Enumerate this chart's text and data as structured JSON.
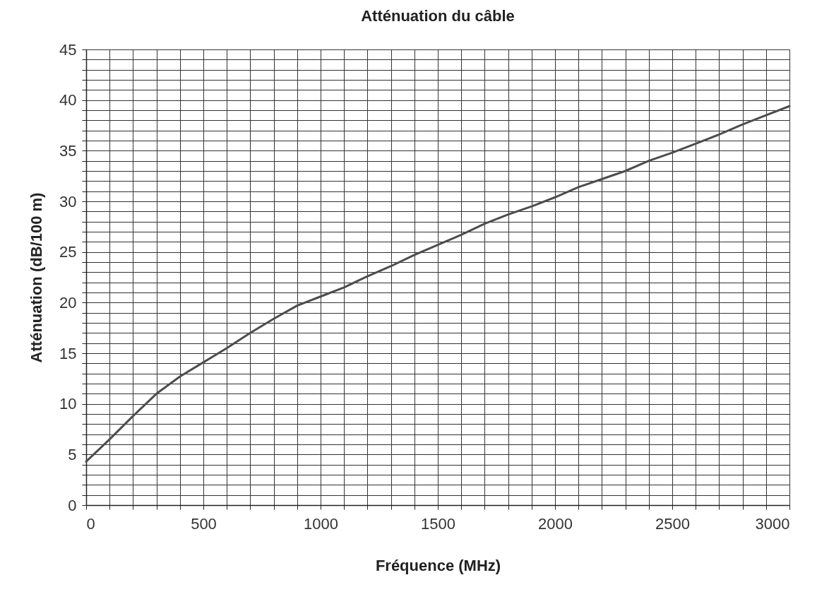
{
  "chart_data": {
    "type": "line",
    "title": "Atténuation du câble",
    "xlabel": "Fréquence (MHz)",
    "ylabel": "Atténuation (dB/100 m)",
    "x": [
      0,
      100,
      200,
      300,
      400,
      500,
      600,
      700,
      800,
      900,
      1000,
      1100,
      1200,
      1300,
      1400,
      1500,
      1600,
      1700,
      1800,
      1900,
      2000,
      2100,
      2200,
      2300,
      2400,
      2500,
      2600,
      2700,
      2800,
      2900,
      3000
    ],
    "series": [
      {
        "color": "#4d4d4d",
        "values": [
          4.3,
          6.5,
          8.8,
          11.0,
          12.7,
          14.1,
          15.5,
          17.0,
          18.4,
          19.7,
          20.6,
          21.5,
          22.6,
          23.6,
          24.7,
          25.7,
          26.7,
          27.8,
          28.7,
          29.5,
          30.4,
          31.4,
          32.2,
          33.0,
          34.0,
          34.8,
          35.7,
          36.6,
          37.6,
          38.5,
          39.4
        ]
      }
    ],
    "xlim": [
      0,
      3000
    ],
    "ylim": [
      0,
      45
    ],
    "xticks": [
      0,
      {
        "value": 100,
        "label": null
      },
      {
        "value": 200,
        "label": null
      },
      {
        "value": 300,
        "label": null
      },
      {
        "value": 400,
        "label": null
      },
      500,
      {
        "value": 600,
        "label": null
      },
      {
        "value": 700,
        "label": null
      },
      {
        "value": 800,
        "label": null
      },
      {
        "value": 900,
        "label": null
      },
      1000,
      {
        "value": 1100,
        "label": null
      },
      {
        "value": 1200,
        "label": null
      },
      {
        "value": 1300,
        "label": null
      },
      {
        "value": 1400,
        "label": null
      },
      1500,
      {
        "value": 1600,
        "label": null
      },
      {
        "value": 1700,
        "label": null
      },
      {
        "value": 1800,
        "label": null
      },
      {
        "value": 1900,
        "label": null
      },
      2000,
      {
        "value": 2100,
        "label": null
      },
      {
        "value": 2200,
        "label": null
      },
      {
        "value": 2300,
        "label": null
      },
      {
        "value": 2400,
        "label": null
      },
      2500,
      {
        "value": 2600,
        "label": null
      },
      {
        "value": 2700,
        "label": null
      },
      {
        "value": 2800,
        "label": null
      },
      {
        "value": 2900,
        "label": null
      },
      3000
    ],
    "yticks": [
      0,
      {
        "value": 1,
        "label": null
      },
      {
        "value": 2,
        "label": null
      },
      {
        "value": 3,
        "label": null
      },
      {
        "value": 4,
        "label": null
      },
      5,
      {
        "value": 6,
        "label": null
      },
      {
        "value": 7,
        "label": null
      },
      {
        "value": 8,
        "label": null
      },
      {
        "value": 9,
        "label": null
      },
      10,
      {
        "value": 11,
        "label": null
      },
      {
        "value": 12,
        "label": null
      },
      {
        "value": 13,
        "label": null
      },
      {
        "value": 14,
        "label": null
      },
      15,
      {
        "value": 16,
        "label": null
      },
      {
        "value": 17,
        "label": null
      },
      {
        "value": 18,
        "label": null
      },
      {
        "value": 19,
        "label": null
      },
      20,
      {
        "value": 21,
        "label": null
      },
      {
        "value": 22,
        "label": null
      },
      {
        "value": 23,
        "label": null
      },
      {
        "value": 24,
        "label": null
      },
      25,
      {
        "value": 26,
        "label": null
      },
      {
        "value": 27,
        "label": null
      },
      {
        "value": 28,
        "label": null
      },
      {
        "value": 29,
        "label": null
      },
      30,
      {
        "value": 31,
        "label": null
      },
      {
        "value": 32,
        "label": null
      },
      {
        "value": 33,
        "label": null
      },
      {
        "value": 34,
        "label": null
      },
      35,
      {
        "value": 36,
        "label": null
      },
      {
        "value": 37,
        "label": null
      },
      {
        "value": 38,
        "label": null
      },
      {
        "value": 39,
        "label": null
      },
      40,
      {
        "value": 41,
        "label": null
      },
      {
        "value": 42,
        "label": null
      },
      {
        "value": 43,
        "label": null
      },
      {
        "value": 44,
        "label": null
      },
      45
    ],
    "grid": true,
    "marker": "none",
    "line_style": "solid"
  }
}
